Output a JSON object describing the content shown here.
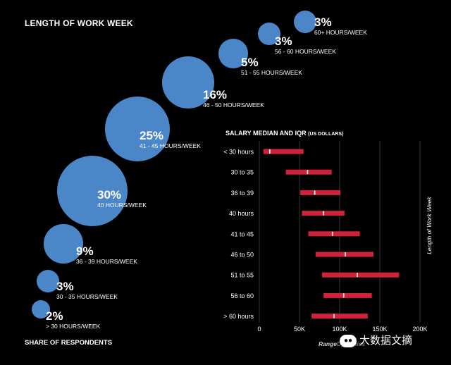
{
  "title": "LENGTH OF WORK WEEK",
  "share_label": "SHARE OF RESPONDENTS",
  "colors": {
    "bubble": "#4a86c8",
    "bar": "#d0233b",
    "median": "#ffffff",
    "grid": "#444444",
    "background": "#000000"
  },
  "chart_data": [
    {
      "type": "bubble",
      "title": "LENGTH OF WORK WEEK",
      "xlabel": "SHARE OF RESPONDENTS",
      "categories": [
        "> 30 HOURS/WEEK",
        "30 - 35 HOURS/WEEK",
        "36 - 39 HOURS/WEEK",
        "40 HOURS/WEEK",
        "41 - 45 HOURS/WEEK",
        "46 - 50 HOURS/WEEK",
        "51 - 55 HOURS/WEEK",
        "56 - 60 HOURS/WEEK",
        "60+ HOURS/WEEK"
      ],
      "values": [
        2,
        3,
        9,
        30,
        25,
        16,
        5,
        3,
        3
      ],
      "value_labels": [
        "2%",
        "3%",
        "9%",
        "30%",
        "25%",
        "16%",
        "5%",
        "3%",
        "3%"
      ]
    },
    {
      "type": "range-bar",
      "title": "SALARY MEDIAN AND IQR",
      "title_unit": "(US DOLLARS)",
      "ylabel": "Length of Work Week",
      "categories": [
        "< 30 hours",
        "30 to 35",
        "36 to 39",
        "40 hours",
        "41 to 45",
        "46 to 50",
        "51 to 55",
        "56 to 60",
        "> 60 hours"
      ],
      "q1": [
        5000,
        33000,
        51000,
        53000,
        61000,
        70000,
        78000,
        80000,
        65000
      ],
      "median": [
        13000,
        60000,
        69000,
        80000,
        91000,
        107000,
        122000,
        105000,
        93000
      ],
      "q3": [
        55000,
        90000,
        101000,
        106000,
        125000,
        142000,
        174000,
        140000,
        135000
      ],
      "xlim": [
        0,
        200000
      ],
      "xticks": [
        0,
        50000,
        100000,
        150000,
        200000
      ],
      "xtick_labels": [
        "0",
        "50K",
        "100K",
        "150K",
        "200K"
      ]
    }
  ],
  "watermark": {
    "brand": "RangeDynamics",
    "wechat_text": "大数据文摘",
    "wechat_icon": "wechat-icon"
  }
}
